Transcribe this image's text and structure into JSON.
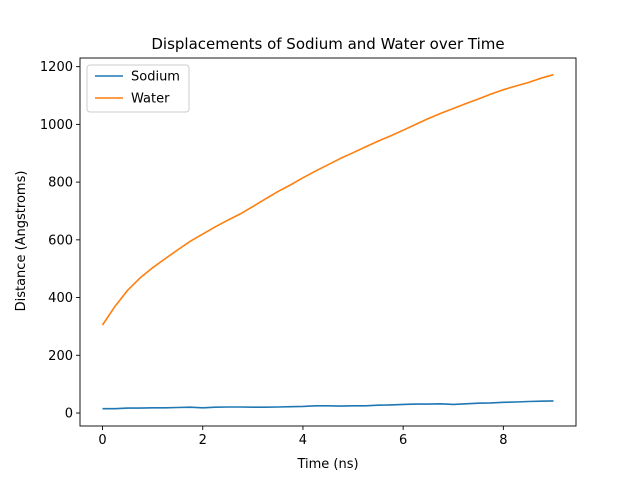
{
  "chart_data": {
    "type": "line",
    "title": "Displacements of Sodium and Water over Time",
    "xlabel": "Time (ns)",
    "ylabel": "Distance (Angstroms)",
    "xlim": [
      -0.45,
      9.45
    ],
    "ylim": [
      -45,
      1230
    ],
    "xticks": [
      0,
      2,
      4,
      6,
      8
    ],
    "yticks": [
      0,
      200,
      400,
      600,
      800,
      1000,
      1200
    ],
    "grid": false,
    "legend_position": "top-left",
    "series": [
      {
        "name": "Sodium",
        "color": "#1f77b4",
        "x": [
          0,
          0.25,
          0.5,
          0.75,
          1.0,
          1.25,
          1.5,
          1.75,
          2.0,
          2.25,
          2.5,
          2.75,
          3.0,
          3.25,
          3.5,
          3.75,
          4.0,
          4.25,
          4.5,
          4.75,
          5.0,
          5.25,
          5.5,
          5.75,
          6.0,
          6.25,
          6.5,
          6.75,
          7.0,
          7.25,
          7.5,
          7.75,
          8.0,
          8.25,
          8.5,
          8.75,
          9.0
        ],
        "values": [
          15,
          15,
          17,
          17,
          18,
          18,
          19,
          20,
          18,
          20,
          21,
          21,
          20,
          20,
          21,
          22,
          23,
          25,
          25,
          24,
          25,
          25,
          27,
          28,
          30,
          31,
          31,
          32,
          30,
          32,
          34,
          35,
          37,
          38,
          40,
          41,
          42
        ]
      },
      {
        "name": "Water",
        "color": "#ff7f0e",
        "x": [
          0,
          0.25,
          0.5,
          0.75,
          1.0,
          1.25,
          1.5,
          1.75,
          2.0,
          2.25,
          2.5,
          2.75,
          3.0,
          3.25,
          3.5,
          3.75,
          4.0,
          4.25,
          4.5,
          4.75,
          5.0,
          5.25,
          5.5,
          5.75,
          6.0,
          6.25,
          6.5,
          6.75,
          7.0,
          7.25,
          7.5,
          7.75,
          8.0,
          8.25,
          8.5,
          8.75,
          9.0
        ],
        "values": [
          305,
          370,
          425,
          468,
          503,
          535,
          565,
          595,
          620,
          645,
          668,
          690,
          715,
          742,
          767,
          790,
          815,
          838,
          860,
          882,
          902,
          922,
          942,
          960,
          980,
          1000,
          1020,
          1038,
          1055,
          1072,
          1088,
          1105,
          1120,
          1133,
          1145,
          1160,
          1172
        ]
      }
    ]
  }
}
